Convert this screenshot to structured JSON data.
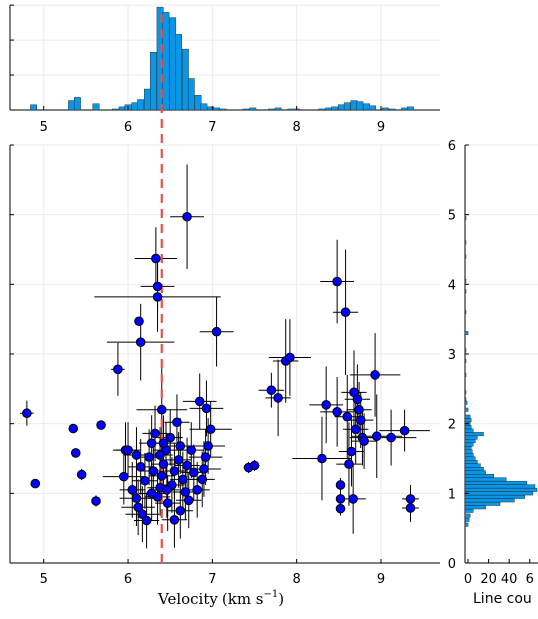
{
  "chart_data": [
    {
      "type": "bar",
      "x_ticks": [
        "5",
        "6",
        "7",
        "8",
        "9"
      ],
      "xlim": [
        4.6,
        9.7
      ],
      "ylim": [
        0,
        100
      ],
      "bar_color": "#0a96e6",
      "bin_width": 0.075,
      "bins": [
        [
          4.88,
          5
        ],
        [
          5.33,
          9
        ],
        [
          5.4,
          12
        ],
        [
          5.62,
          6
        ],
        [
          5.85,
          1
        ],
        [
          5.93,
          3
        ],
        [
          6.0,
          5
        ],
        [
          6.08,
          7
        ],
        [
          6.15,
          10
        ],
        [
          6.23,
          20
        ],
        [
          6.3,
          55
        ],
        [
          6.38,
          98
        ],
        [
          6.45,
          93
        ],
        [
          6.53,
          88
        ],
        [
          6.6,
          72
        ],
        [
          6.68,
          58
        ],
        [
          6.75,
          30
        ],
        [
          6.83,
          14
        ],
        [
          6.9,
          6
        ],
        [
          6.98,
          3
        ],
        [
          7.05,
          2
        ],
        [
          7.13,
          1
        ],
        [
          7.4,
          1
        ],
        [
          7.48,
          2
        ],
        [
          7.7,
          1
        ],
        [
          7.78,
          2
        ],
        [
          7.93,
          1
        ],
        [
          8.0,
          1
        ],
        [
          8.3,
          1
        ],
        [
          8.38,
          2
        ],
        [
          8.45,
          3
        ],
        [
          8.53,
          5
        ],
        [
          8.6,
          7
        ],
        [
          8.68,
          9
        ],
        [
          8.75,
          8
        ],
        [
          8.83,
          6
        ],
        [
          8.9,
          4
        ],
        [
          9.05,
          2
        ],
        [
          9.13,
          1
        ],
        [
          9.28,
          2
        ],
        [
          9.35,
          3
        ]
      ]
    },
    {
      "type": "scatter",
      "x_ticks": [
        "5",
        "6",
        "7",
        "8",
        "9"
      ],
      "y_ticks": [
        "0",
        "1",
        "2",
        "3",
        "4",
        "5",
        "6"
      ],
      "xlim": [
        4.6,
        9.7
      ],
      "ylim": [
        0,
        6
      ],
      "xlabel_text": "Velocity",
      "xlabel_unit": "(km s",
      "xlabel_exp": "−1",
      "xlabel_close": ")",
      "reference_line_x": 6.4,
      "reference_line_color": "#e8524a",
      "marker_color": "#0000ff",
      "points": [
        [
          4.8,
          2.15,
          0.08,
          0.18
        ],
        [
          4.9,
          1.14,
          0,
          0
        ],
        [
          5.35,
          1.93,
          0,
          0
        ],
        [
          5.38,
          1.58,
          0,
          0
        ],
        [
          5.45,
          1.27,
          0.04,
          0.08
        ],
        [
          5.62,
          0.89,
          0.04,
          0.08
        ],
        [
          5.68,
          1.98,
          0,
          0
        ],
        [
          5.88,
          2.78,
          0.08,
          0.38
        ],
        [
          6.13,
          3.47,
          0,
          0
        ],
        [
          6.15,
          3.17,
          0.4,
          0.55
        ],
        [
          6.33,
          4.37,
          0.25,
          0.45
        ],
        [
          6.35,
          3.97,
          0.2,
          0.35
        ],
        [
          6.35,
          3.82,
          0.75,
          0.5
        ],
        [
          6.7,
          4.97,
          0.2,
          0.75
        ],
        [
          7.05,
          3.32,
          0.2,
          0.5
        ],
        [
          6.4,
          2.2,
          0.3,
          0.7
        ],
        [
          5.97,
          1.62,
          0.15,
          0.4
        ],
        [
          6.0,
          1.62,
          0.15,
          0.4
        ],
        [
          5.95,
          1.24,
          0.25,
          0.4
        ],
        [
          6.05,
          1.05,
          0.15,
          0.4
        ],
        [
          6.1,
          0.93,
          0.2,
          0.4
        ],
        [
          6.12,
          0.8,
          0.2,
          0.4
        ],
        [
          6.17,
          0.7,
          0.2,
          0.4
        ],
        [
          6.22,
          0.61,
          0.15,
          0.4
        ],
        [
          6.55,
          0.62,
          0.15,
          0.4
        ],
        [
          6.62,
          0.75,
          0.15,
          0.4
        ],
        [
          6.72,
          0.9,
          0.15,
          0.4
        ],
        [
          6.82,
          1.05,
          0.15,
          0.4
        ],
        [
          6.88,
          1.2,
          0.15,
          0.4
        ],
        [
          6.9,
          1.35,
          0.2,
          0.4
        ],
        [
          6.92,
          1.52,
          0.2,
          0.4
        ],
        [
          6.95,
          1.68,
          0.2,
          0.4
        ],
        [
          6.98,
          1.92,
          0.25,
          0.4
        ],
        [
          6.93,
          2.22,
          0.2,
          0.4
        ],
        [
          6.85,
          2.32,
          0.2,
          0.4
        ],
        [
          6.58,
          2.02,
          0.15,
          0.4
        ],
        [
          6.5,
          1.8,
          0.15,
          0.4
        ],
        [
          6.45,
          1.62,
          0.15,
          0.4
        ],
        [
          6.42,
          1.42,
          0.15,
          0.4
        ],
        [
          6.4,
          1.25,
          0.15,
          0.4
        ],
        [
          6.38,
          1.08,
          0.15,
          0.4
        ],
        [
          6.35,
          0.95,
          0.15,
          0.4
        ],
        [
          6.3,
          1.32,
          0.15,
          0.4
        ],
        [
          6.25,
          1.52,
          0.15,
          0.4
        ],
        [
          6.28,
          1.72,
          0.15,
          0.4
        ],
        [
          6.32,
          1.86,
          0.15,
          0.4
        ],
        [
          6.2,
          1.18,
          0.15,
          0.4
        ],
        [
          6.15,
          1.38,
          0.15,
          0.4
        ],
        [
          6.47,
          0.86,
          0.15,
          0.4
        ],
        [
          6.52,
          1.12,
          0.15,
          0.4
        ],
        [
          6.55,
          1.32,
          0.15,
          0.4
        ],
        [
          6.6,
          1.48,
          0.15,
          0.4
        ],
        [
          6.65,
          1.2,
          0.15,
          0.4
        ],
        [
          6.7,
          1.4,
          0.15,
          0.4
        ],
        [
          6.75,
          1.62,
          0.15,
          0.4
        ],
        [
          6.78,
          1.3,
          0.15,
          0.4
        ],
        [
          6.42,
          1.72,
          0.15,
          0.4
        ],
        [
          6.38,
          1.55,
          0.15,
          0.4
        ],
        [
          6.46,
          1.05,
          0.15,
          0.4
        ],
        [
          6.28,
          1.0,
          0.15,
          0.4
        ],
        [
          6.1,
          1.55,
          0.15,
          0.4
        ],
        [
          6.62,
          1.68,
          0.15,
          0.4
        ],
        [
          6.68,
          1.02,
          0.15,
          0.4
        ],
        [
          7.43,
          1.37,
          0.06,
          0.08
        ],
        [
          7.5,
          1.4,
          0.06,
          0.08
        ],
        [
          7.7,
          2.48,
          0.15,
          0.25
        ],
        [
          7.78,
          2.37,
          0.15,
          0.55
        ],
        [
          7.87,
          2.9,
          0.15,
          0.6
        ],
        [
          7.92,
          2.95,
          0.25,
          0.55
        ],
        [
          8.3,
          1.5,
          0.35,
          0.6
        ],
        [
          8.35,
          2.27,
          0.2,
          0.55
        ],
        [
          8.48,
          4.04,
          0.2,
          0.6
        ],
        [
          8.48,
          2.17,
          0.2,
          0.5
        ],
        [
          8.52,
          1.12,
          0.04,
          0.1
        ],
        [
          8.52,
          0.92,
          0.04,
          0.1
        ],
        [
          8.52,
          0.78,
          0.04,
          0.1
        ],
        [
          8.58,
          3.6,
          0.15,
          0.9
        ],
        [
          8.6,
          2.1,
          0.15,
          0.6
        ],
        [
          8.62,
          1.42,
          0.15,
          0.6
        ],
        [
          8.65,
          1.6,
          0.15,
          0.5
        ],
        [
          8.67,
          0.92,
          0.15,
          0.5
        ],
        [
          8.68,
          2.45,
          0.15,
          0.6
        ],
        [
          8.7,
          1.92,
          0.15,
          0.5
        ],
        [
          8.72,
          2.35,
          0.15,
          0.5
        ],
        [
          8.74,
          2.2,
          0.15,
          0.4
        ],
        [
          8.76,
          2.05,
          0.15,
          0.4
        ],
        [
          8.78,
          1.8,
          0.15,
          0.4
        ],
        [
          8.8,
          1.75,
          0.15,
          0.4
        ],
        [
          8.93,
          2.7,
          0.3,
          0.6
        ],
        [
          8.95,
          1.82,
          0.3,
          0.6
        ],
        [
          9.12,
          1.8,
          0.3,
          0.4
        ],
        [
          9.28,
          1.9,
          0.3,
          0.3
        ],
        [
          9.35,
          0.92,
          0.1,
          0.2
        ],
        [
          9.35,
          0.79,
          0.1,
          0.2
        ]
      ]
    },
    {
      "type": "bar",
      "orientation": "horizontal",
      "x_ticks": [
        "0",
        "20",
        "40",
        "6"
      ],
      "xlabel": "Line cou",
      "ylim": [
        0,
        6
      ],
      "bar_color": "#0a96e6",
      "bin_width": 0.05,
      "bins": [
        [
          0.55,
          3
        ],
        [
          0.62,
          4
        ],
        [
          0.68,
          5
        ],
        [
          0.75,
          8
        ],
        [
          0.8,
          20
        ],
        [
          0.85,
          34
        ],
        [
          0.9,
          48
        ],
        [
          0.95,
          58
        ],
        [
          1.0,
          66
        ],
        [
          1.05,
          70
        ],
        [
          1.1,
          68
        ],
        [
          1.15,
          60
        ],
        [
          1.2,
          40
        ],
        [
          1.25,
          28
        ],
        [
          1.3,
          20
        ],
        [
          1.35,
          18
        ],
        [
          1.4,
          15
        ],
        [
          1.45,
          12
        ],
        [
          1.5,
          10
        ],
        [
          1.55,
          8
        ],
        [
          1.6,
          7
        ],
        [
          1.65,
          6
        ],
        [
          1.7,
          8
        ],
        [
          1.75,
          10
        ],
        [
          1.8,
          12
        ],
        [
          1.85,
          18
        ],
        [
          1.9,
          8
        ],
        [
          1.95,
          6
        ],
        [
          2.0,
          5
        ],
        [
          2.05,
          6
        ],
        [
          2.1,
          5
        ],
        [
          2.2,
          3
        ],
        [
          2.3,
          2
        ],
        [
          2.35,
          1
        ],
        [
          2.45,
          1
        ],
        [
          2.7,
          1
        ],
        [
          2.9,
          1
        ],
        [
          3.05,
          1
        ],
        [
          3.3,
          3
        ],
        [
          3.6,
          1
        ],
        [
          3.9,
          1
        ],
        [
          4.05,
          1
        ],
        [
          4.4,
          1
        ],
        [
          4.6,
          1
        ],
        [
          4.95,
          1
        ]
      ]
    }
  ]
}
